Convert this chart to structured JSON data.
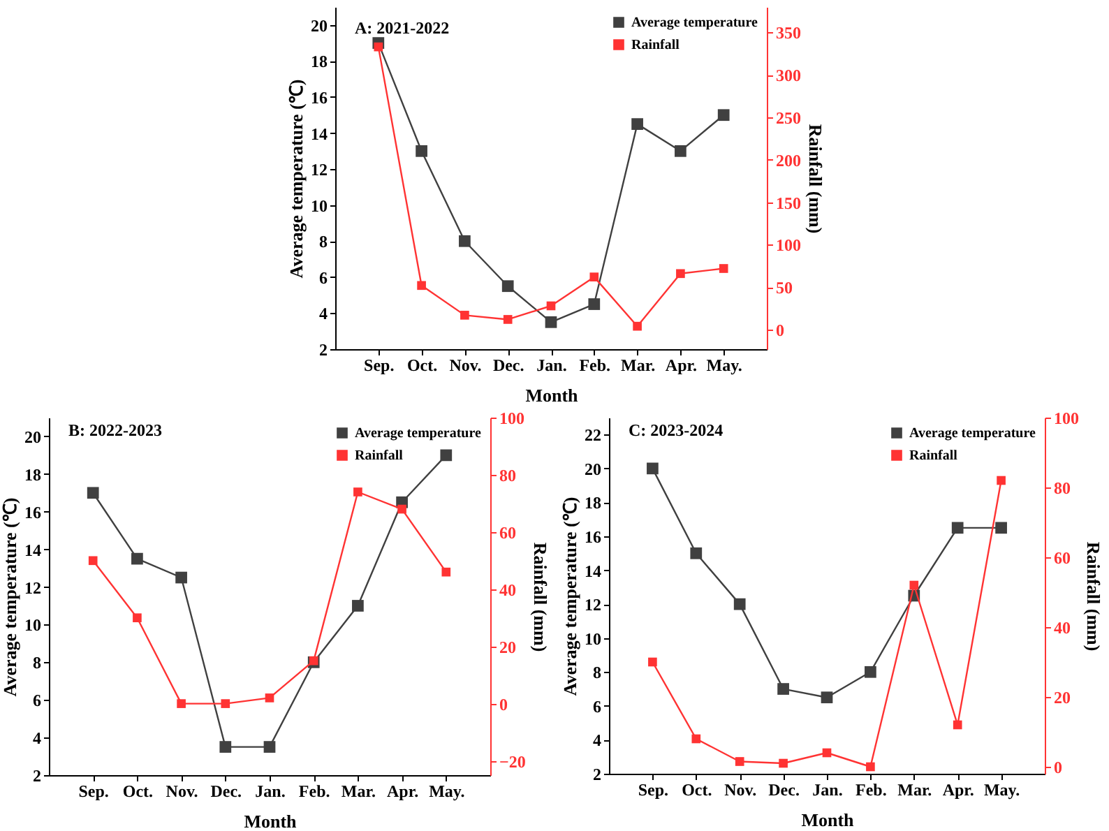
{
  "chart_data": [
    {
      "type": "line",
      "title": "A: 2021-2022",
      "xlabel": "Month",
      "ylabel": "Average temperature (℃)",
      "y2label": "Rainfall (mm)",
      "categories": [
        "Sep.",
        "Oct.",
        "Nov.",
        "Dec.",
        "Jan.",
        "Feb.",
        "Mar.",
        "Apr.",
        "May."
      ],
      "series": [
        {
          "name": "Average temperature",
          "color": "#404040",
          "values": [
            19,
            13,
            8,
            5.5,
            3.5,
            4.5,
            14.5,
            13,
            15
          ]
        },
        {
          "name": "Rainfall",
          "color": "#ff3333",
          "axis": "y2",
          "values": [
            333,
            52,
            17,
            12,
            28,
            62,
            4,
            66,
            72
          ]
        }
      ],
      "ylim": [
        2,
        21
      ],
      "yticks": [
        2,
        4,
        6,
        8,
        10,
        12,
        14,
        16,
        18,
        20
      ],
      "y2lim": [
        -23,
        380
      ],
      "y2ticks": [
        0,
        50,
        100,
        150,
        200,
        250,
        300,
        350
      ],
      "legend": "top right",
      "marker": "square"
    },
    {
      "type": "line",
      "title": "B: 2022-2023",
      "xlabel": "Month",
      "ylabel": "Average temperature (℃)",
      "y2label": "Rainfall (mm)",
      "categories": [
        "Sep.",
        "Oct.",
        "Nov.",
        "Dec.",
        "Jan.",
        "Feb.",
        "Mar.",
        "Apr.",
        "May."
      ],
      "series": [
        {
          "name": "Average temperature",
          "color": "#404040",
          "values": [
            17,
            13.5,
            12.5,
            3.5,
            3.5,
            8,
            11,
            16.5,
            19
          ]
        },
        {
          "name": "Rainfall",
          "color": "#ff3333",
          "axis": "y2",
          "values": [
            50,
            30,
            0,
            0,
            2,
            15,
            74,
            68,
            46
          ]
        }
      ],
      "ylim": [
        2,
        21
      ],
      "yticks": [
        2,
        4,
        6,
        8,
        10,
        12,
        14,
        16,
        18,
        20
      ],
      "y2lim": [
        -25,
        100
      ],
      "y2ticks": [
        -20,
        0,
        20,
        40,
        60,
        80,
        100
      ],
      "legend": "top right",
      "marker": "square"
    },
    {
      "type": "line",
      "title": "C: 2023-2024",
      "xlabel": "Month",
      "ylabel": "Average temperature (℃)",
      "y2label": "Rainfall (mm)",
      "categories": [
        "Sep.",
        "Oct.",
        "Nov.",
        "Dec.",
        "Jan.",
        "Feb.",
        "Mar.",
        "Apr.",
        "May."
      ],
      "series": [
        {
          "name": "Average temperature",
          "color": "#404040",
          "values": [
            20,
            15,
            12,
            7,
            6.5,
            8,
            12.5,
            16.5,
            16.5
          ]
        },
        {
          "name": "Rainfall",
          "color": "#ff3333",
          "axis": "y2",
          "values": [
            30,
            8,
            1.5,
            1,
            4,
            0,
            52,
            12,
            82
          ]
        }
      ],
      "ylim": [
        2,
        23
      ],
      "yticks": [
        2,
        4,
        6,
        8,
        10,
        12,
        14,
        16,
        18,
        20,
        22
      ],
      "y2lim": [
        -2,
        100
      ],
      "y2ticks": [
        0,
        20,
        40,
        60,
        80,
        100
      ],
      "legend": "top right",
      "marker": "square"
    }
  ]
}
